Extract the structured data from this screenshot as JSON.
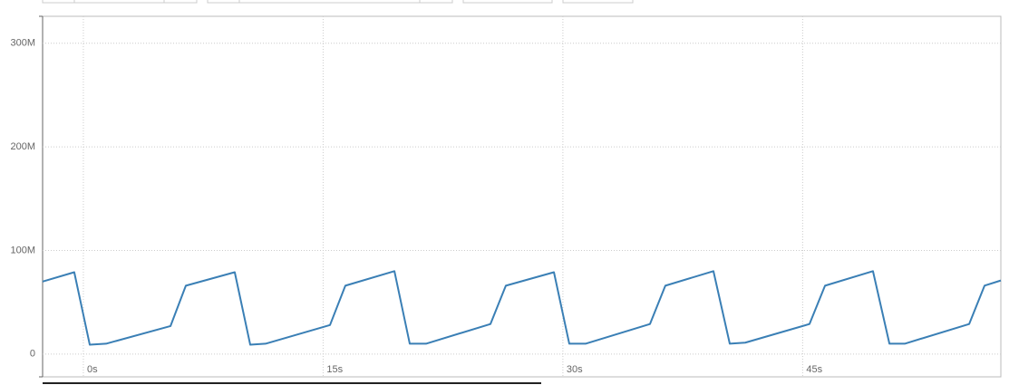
{
  "chart_data": {
    "type": "line",
    "x": [
      -2.55,
      -0.57,
      0.4,
      1.42,
      5.45,
      6.41,
      9.47,
      10.44,
      11.4,
      15.43,
      16.39,
      19.46,
      20.42,
      21.44,
      25.47,
      26.43,
      29.44,
      30.4,
      31.42,
      35.45,
      36.41,
      39.42,
      40.44,
      41.41,
      45.43,
      46.4,
      49.4,
      50.43,
      51.39,
      55.42,
      56.38,
      57.4
    ],
    "series": [
      {
        "color": "#3a7fb5",
        "values": [
          70,
          79,
          9,
          10,
          27,
          66,
          79,
          9,
          10,
          28,
          66,
          80,
          10,
          10,
          29,
          66,
          79,
          10,
          10,
          29,
          66,
          80,
          10,
          11,
          29,
          66,
          80,
          10,
          10,
          29,
          66,
          71
        ]
      }
    ],
    "xlim": [
      -2.55,
      57.4
    ],
    "xticks": [
      {
        "value": 0,
        "label": "0s"
      },
      {
        "value": 15,
        "label": "15s"
      },
      {
        "value": 30,
        "label": "30s"
      },
      {
        "value": 45,
        "label": "45s"
      }
    ],
    "ylim": [
      -22,
      326
    ],
    "yticks": [
      0,
      {
        "value": 100,
        "label": "100M"
      },
      {
        "value": 200,
        "label": "200M"
      },
      {
        "value": 300,
        "label": "300M"
      }
    ],
    "grid": true
  }
}
